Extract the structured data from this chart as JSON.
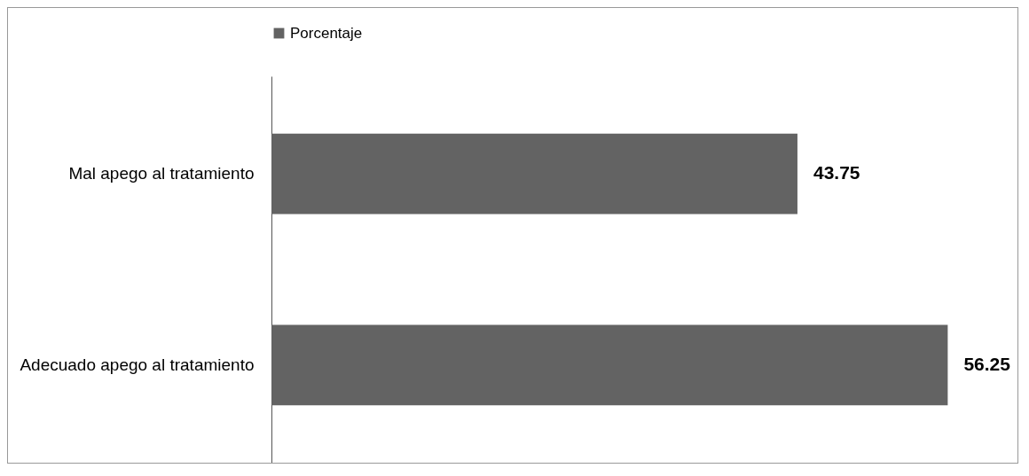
{
  "chart_data": {
    "type": "bar",
    "orientation": "horizontal",
    "categories": [
      "Mal apego al tratamiento",
      "Adecuado apego al tratamiento"
    ],
    "series": [
      {
        "name": "Porcentaje",
        "color": "#636363",
        "values": [
          43.75,
          56.25
        ]
      }
    ],
    "data_labels": true,
    "legend": "top"
  }
}
